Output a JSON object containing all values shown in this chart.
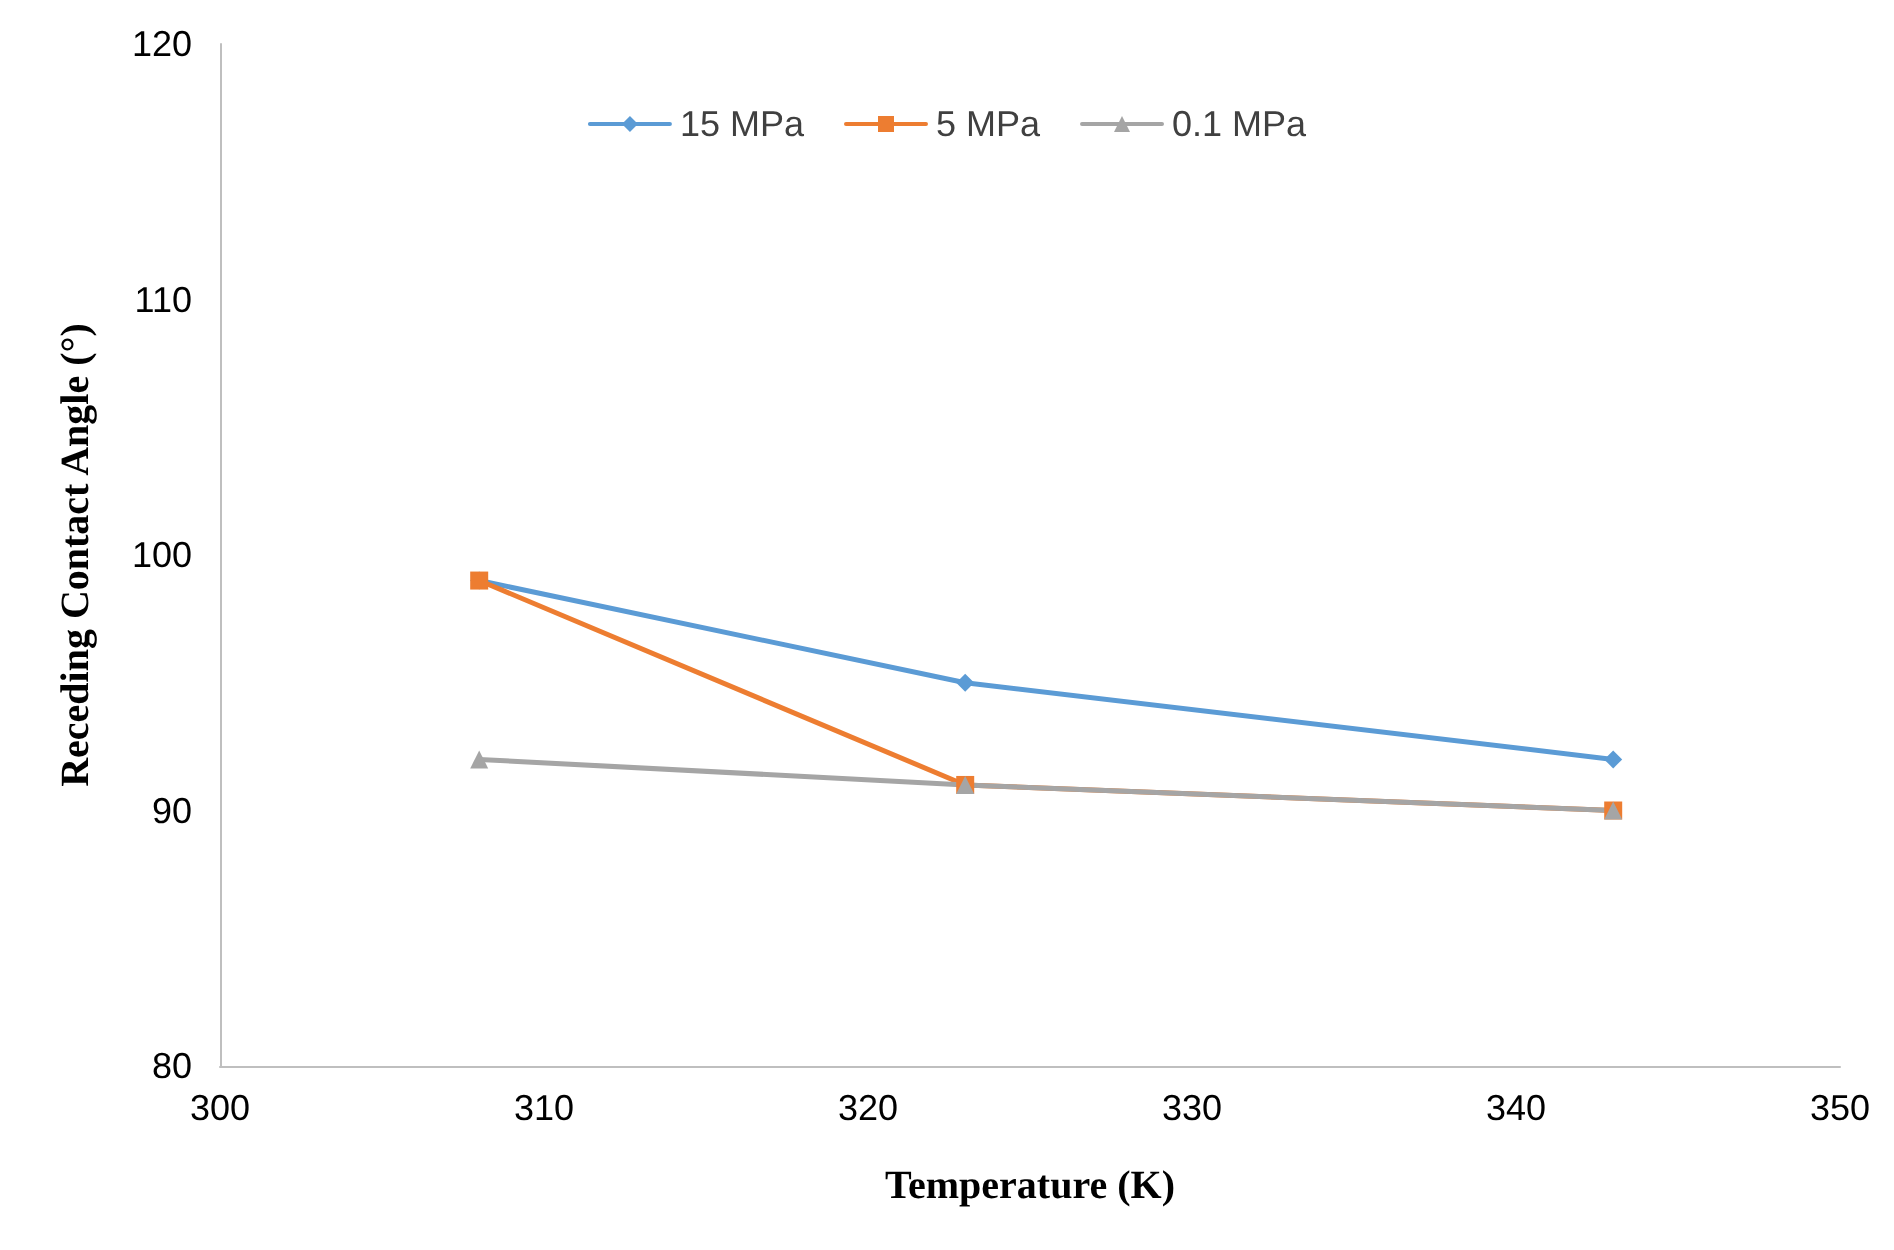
{
  "chart_data": {
    "type": "line",
    "xlabel": "Temperature (K)",
    "ylabel": "Receding Contact Angle (°)",
    "x": [
      308,
      323,
      343
    ],
    "series": [
      {
        "name": "15 MPa",
        "color": "#5b9bd5",
        "marker": "diamond",
        "values": [
          99,
          95,
          92
        ]
      },
      {
        "name": "5 MPa",
        "color": "#ed7d31",
        "marker": "square",
        "values": [
          99,
          91,
          90
        ]
      },
      {
        "name": "0.1 MPa",
        "color": "#a5a5a5",
        "marker": "triangle",
        "values": [
          92,
          91,
          90
        ]
      }
    ],
    "xlim": [
      300,
      350
    ],
    "xticks": [
      300,
      310,
      320,
      330,
      340,
      350
    ],
    "ylim": [
      80,
      120
    ],
    "yticks": [
      80,
      90,
      100,
      110,
      120
    ],
    "grid": false,
    "legend": "top",
    "line_style": "solid"
  }
}
